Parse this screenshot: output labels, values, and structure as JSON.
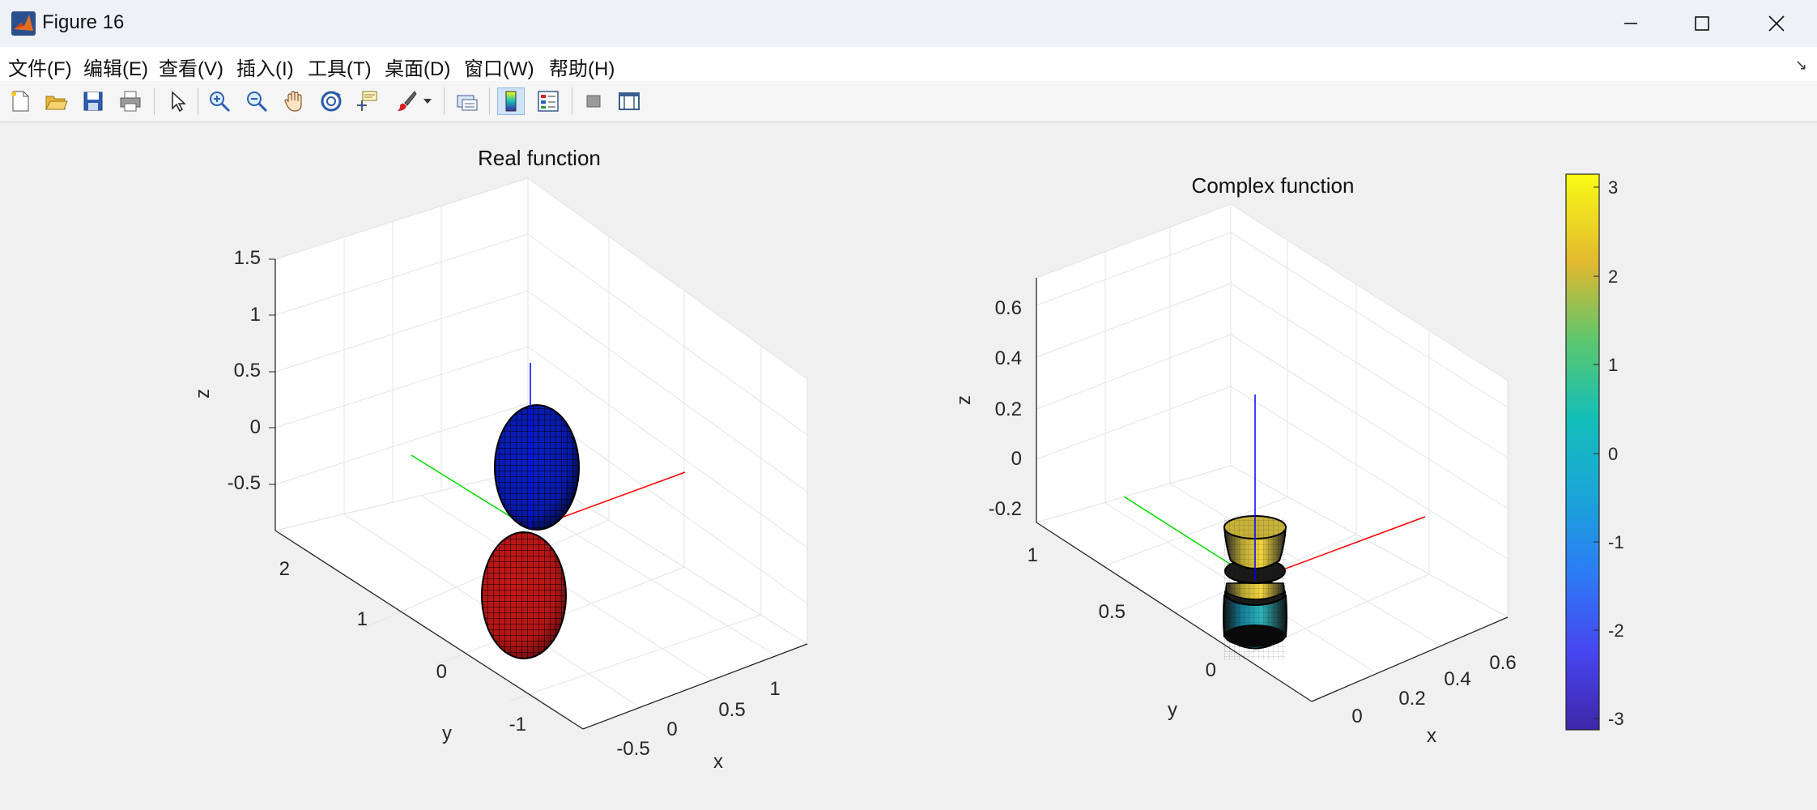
{
  "window": {
    "title": "Figure 16",
    "controls": [
      "minimize",
      "maximize",
      "close"
    ]
  },
  "menu": {
    "items": [
      "文件(F)",
      "编辑(E)",
      "查看(V)",
      "插入(I)",
      "工具(T)",
      "桌面(D)",
      "窗口(W)",
      "帮助(H)"
    ]
  },
  "toolbar": {
    "buttons": [
      "new-figure-icon",
      "open-file-icon",
      "save-icon",
      "print-icon",
      "edit-plot-arrow-icon",
      "zoom-in-icon",
      "zoom-out-icon",
      "pan-hand-icon",
      "rotate-3d-icon",
      "data-cursor-icon",
      "brush-icon",
      "brush-dropdown-icon",
      "link-plot-icon",
      "insert-colorbar-icon",
      "insert-legend-icon",
      "hide-plot-tools-icon",
      "show-plot-tools-icon"
    ],
    "selected": "insert-colorbar-icon"
  },
  "plot1": {
    "title": "Real function",
    "xlabel": "x",
    "ylabel": "y",
    "zlabel": "z",
    "z_ticks": [
      "1.5",
      "1",
      "0.5",
      "0",
      "-0.5"
    ],
    "y_ticks": [
      "2",
      "1",
      "0",
      "-1"
    ],
    "x_ticks": [
      "-0.5",
      "0",
      "0.5",
      "1"
    ],
    "lobe_colors": {
      "upper": "#0000cc",
      "lower": "#cc0000"
    }
  },
  "plot2": {
    "title": "Complex function",
    "xlabel": "x",
    "ylabel": "y",
    "zlabel": "z",
    "z_ticks": [
      "0.6",
      "0.4",
      "0.2",
      "0",
      "-0.2"
    ],
    "y_ticks": [
      "1",
      "0.5",
      "0"
    ],
    "x_ticks": [
      "0",
      "0.2",
      "0.4",
      "0.6"
    ]
  },
  "colorbar": {
    "ticks": [
      "3",
      "2",
      "1",
      "0",
      "-1",
      "-2",
      "-3"
    ],
    "colormap": "parula"
  },
  "axis_line_colors": {
    "x": "#ff0000",
    "y": "#00cc00",
    "z": "#0000ff"
  }
}
